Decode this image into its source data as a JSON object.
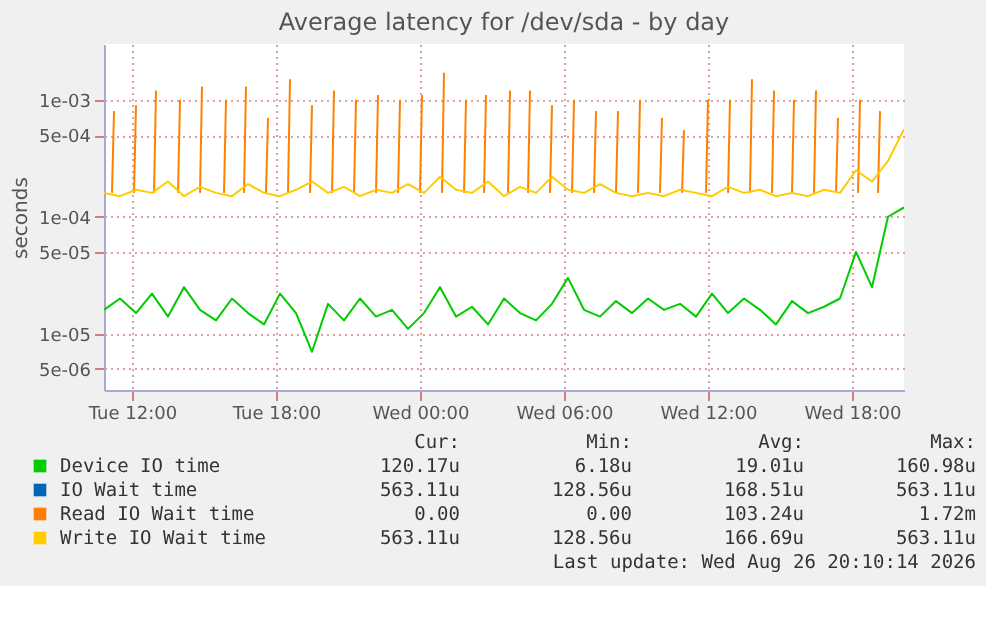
{
  "chart_data": {
    "type": "line",
    "title": "Average latency for /dev/sda - by day",
    "ylabel": "seconds",
    "log": "y",
    "grid": true,
    "legend": "bottom",
    "line_style": "solid",
    "xlim": [
      "2026-08-25T10:50",
      "2026-08-26T20:10"
    ],
    "xticks": [
      {
        "value": "2026-08-25T12:00",
        "label": "Tue 12:00"
      },
      {
        "value": "2026-08-25T18:00",
        "label": "Tue 18:00"
      },
      {
        "value": "2026-08-26T00:00",
        "label": "Wed 00:00"
      },
      {
        "value": "2026-08-26T06:00",
        "label": "Wed 06:00"
      },
      {
        "value": "2026-08-26T12:00",
        "label": "Wed 12:00"
      },
      {
        "value": "2026-08-26T18:00",
        "label": "Wed 18:00"
      }
    ],
    "ylim": [
      3.3e-06,
      0.003
    ],
    "yticks": [
      {
        "value": 5e-06,
        "label": "5e-06"
      },
      {
        "value": 1e-05,
        "label": "1e-05"
      },
      {
        "value": 5e-05,
        "label": "5e-05"
      },
      {
        "value": 0.0001,
        "label": "1e-04"
      },
      {
        "value": 0.0005,
        "label": "5e-04"
      },
      {
        "value": 0.001,
        "label": "1e-03"
      }
    ],
    "annotations": [
      "Cur:",
      "Min:",
      "Avg:",
      "Max:",
      "120.17u",
      "6.18u",
      "19.01u",
      "160.98u",
      "563.11u",
      "128.56u",
      "168.51u",
      "563.11u",
      "0.00",
      "0.00",
      "103.24u",
      "1.72m",
      "563.11u",
      "128.56u",
      "166.69u",
      "563.11u",
      "Last update: Wed Aug 26 20:10:14 2026"
    ],
    "series": [
      {
        "name": "Device IO time",
        "color": "#00cc00",
        "x": [
          "2026-08-25T10:50",
          "2026-08-25T11:30",
          "2026-08-25T12:10",
          "2026-08-25T12:50",
          "2026-08-25T13:30",
          "2026-08-25T14:10",
          "2026-08-25T14:50",
          "2026-08-25T15:30",
          "2026-08-25T16:10",
          "2026-08-25T16:50",
          "2026-08-25T17:30",
          "2026-08-25T18:10",
          "2026-08-25T18:50",
          "2026-08-25T19:30",
          "2026-08-25T20:10",
          "2026-08-25T20:50",
          "2026-08-25T21:30",
          "2026-08-25T22:10",
          "2026-08-25T22:50",
          "2026-08-25T23:30",
          "2026-08-26T00:10",
          "2026-08-26T00:50",
          "2026-08-26T01:30",
          "2026-08-26T02:10",
          "2026-08-26T02:50",
          "2026-08-26T03:30",
          "2026-08-26T04:10",
          "2026-08-26T04:50",
          "2026-08-26T05:30",
          "2026-08-26T06:10",
          "2026-08-26T06:50",
          "2026-08-26T07:30",
          "2026-08-26T08:10",
          "2026-08-26T08:50",
          "2026-08-26T09:30",
          "2026-08-26T10:10",
          "2026-08-26T10:50",
          "2026-08-26T11:30",
          "2026-08-26T12:10",
          "2026-08-26T12:50",
          "2026-08-26T13:30",
          "2026-08-26T14:10",
          "2026-08-26T14:50",
          "2026-08-26T15:30",
          "2026-08-26T16:10",
          "2026-08-26T16:50",
          "2026-08-26T17:30",
          "2026-08-26T18:10",
          "2026-08-26T18:50",
          "2026-08-26T19:30",
          "2026-08-26T20:10"
        ],
        "values": [
          1.6e-05,
          2e-05,
          1.5e-05,
          2.2e-05,
          1.4e-05,
          2.5e-05,
          1.6e-05,
          1.3e-05,
          2e-05,
          1.5e-05,
          1.2e-05,
          2.2e-05,
          1.5e-05,
          7e-06,
          1.8e-05,
          1.3e-05,
          2e-05,
          1.4e-05,
          1.6e-05,
          1.1e-05,
          1.5e-05,
          2.5e-05,
          1.4e-05,
          1.7e-05,
          1.2e-05,
          2e-05,
          1.5e-05,
          1.3e-05,
          1.8e-05,
          3e-05,
          1.6e-05,
          1.4e-05,
          1.9e-05,
          1.5e-05,
          2e-05,
          1.6e-05,
          1.8e-05,
          1.4e-05,
          2.2e-05,
          1.5e-05,
          2e-05,
          1.6e-05,
          1.2e-05,
          1.9e-05,
          1.5e-05,
          1.7e-05,
          2e-05,
          5e-05,
          2.5e-05,
          0.0001,
          0.00012
        ]
      },
      {
        "name": "IO Wait time",
        "color": "#0066b3"
      },
      {
        "name": "Read IO Wait time",
        "color": "#ff8000",
        "x": [
          "2026-08-25T11:10",
          "2026-08-25T11:15",
          "2026-08-25T11:20",
          "2026-08-25T12:05",
          "2026-08-25T12:10",
          "2026-08-25T12:15",
          "2026-08-25T12:55",
          "2026-08-25T13:00",
          "2026-08-25T13:05",
          "2026-08-25T13:55",
          "2026-08-25T14:00",
          "2026-08-25T14:05",
          "2026-08-25T14:50",
          "2026-08-25T14:55",
          "2026-08-25T15:00",
          "2026-08-25T15:50",
          "2026-08-25T15:55",
          "2026-08-25T16:00",
          "2026-08-25T16:40",
          "2026-08-25T16:45",
          "2026-08-25T16:50",
          "2026-08-25T17:35",
          "2026-08-25T17:40",
          "2026-08-25T17:45",
          "2026-08-25T18:30",
          "2026-08-25T18:35",
          "2026-08-25T18:40",
          "2026-08-25T19:25",
          "2026-08-25T19:30",
          "2026-08-25T19:35",
          "2026-08-25T20:20",
          "2026-08-25T20:25",
          "2026-08-25T20:30",
          "2026-08-25T21:15",
          "2026-08-25T21:20",
          "2026-08-25T21:25",
          "2026-08-25T22:10",
          "2026-08-25T22:15",
          "2026-08-25T22:20",
          "2026-08-25T23:05",
          "2026-08-25T23:10",
          "2026-08-25T23:15",
          "2026-08-26T00:00",
          "2026-08-26T00:05",
          "2026-08-26T00:10",
          "2026-08-26T00:55",
          "2026-08-26T01:00",
          "2026-08-26T01:05",
          "2026-08-26T01:50",
          "2026-08-26T01:55",
          "2026-08-26T02:00",
          "2026-08-26T02:40",
          "2026-08-26T02:45",
          "2026-08-26T02:50",
          "2026-08-26T03:40",
          "2026-08-26T03:45",
          "2026-08-26T03:50",
          "2026-08-26T04:30",
          "2026-08-26T04:35",
          "2026-08-26T04:40",
          "2026-08-26T05:25",
          "2026-08-26T05:30",
          "2026-08-26T05:35",
          "2026-08-26T06:20",
          "2026-08-26T06:25",
          "2026-08-26T06:30",
          "2026-08-26T07:15",
          "2026-08-26T07:20",
          "2026-08-26T07:25",
          "2026-08-26T08:10",
          "2026-08-26T08:15",
          "2026-08-26T08:20",
          "2026-08-26T09:05",
          "2026-08-26T09:10",
          "2026-08-26T09:15",
          "2026-08-26T10:00",
          "2026-08-26T10:05",
          "2026-08-26T10:10",
          "2026-08-26T10:55",
          "2026-08-26T11:00",
          "2026-08-26T11:05",
          "2026-08-26T11:55",
          "2026-08-26T12:00",
          "2026-08-26T12:05",
          "2026-08-26T12:50",
          "2026-08-26T12:55",
          "2026-08-26T13:00",
          "2026-08-26T13:45",
          "2026-08-26T13:50",
          "2026-08-26T13:55",
          "2026-08-26T14:40",
          "2026-08-26T14:45",
          "2026-08-26T14:50",
          "2026-08-26T15:30",
          "2026-08-26T15:35",
          "2026-08-26T15:40",
          "2026-08-26T16:25",
          "2026-08-26T16:30",
          "2026-08-26T16:35",
          "2026-08-26T17:20",
          "2026-08-26T17:25",
          "2026-08-26T17:30",
          "2026-08-26T18:15",
          "2026-08-26T18:20",
          "2026-08-26T18:25",
          "2026-08-26T19:05",
          "2026-08-26T19:10"
        ],
        "values": [
          0.00016,
          0.0008,
          null,
          0.00016,
          0.0009,
          null,
          0.00016,
          0.0012,
          null,
          0.00016,
          0.001,
          null,
          0.00016,
          0.0013,
          null,
          0.00016,
          0.001,
          null,
          0.00016,
          0.0013,
          null,
          0.00016,
          0.0007,
          null,
          0.00016,
          0.0015,
          null,
          0.00016,
          0.0009,
          null,
          0.00016,
          0.0012,
          null,
          0.00016,
          0.001,
          null,
          0.00016,
          0.0011,
          null,
          0.00016,
          0.001,
          null,
          0.00016,
          0.0011,
          null,
          0.00016,
          0.0017,
          null,
          0.00016,
          0.001,
          null,
          0.00016,
          0.0011,
          null,
          0.00016,
          0.0012,
          null,
          0.00016,
          0.0012,
          null,
          0.00016,
          0.0009,
          null,
          0.00016,
          0.001,
          null,
          0.00016,
          0.0008,
          null,
          0.00016,
          0.0008,
          null,
          0.00016,
          0.001,
          null,
          0.00016,
          0.0007,
          null,
          0.00016,
          0.00055,
          null,
          0.00016,
          0.001,
          null,
          0.00016,
          0.001,
          null,
          0.00016,
          0.0015,
          null,
          0.00016,
          0.0012,
          null,
          0.00016,
          0.001,
          null,
          0.00016,
          0.0012,
          null,
          0.00016,
          0.0007,
          null,
          0.00016,
          0.001,
          null,
          0.00016,
          0.0008
        ]
      },
      {
        "name": "Write IO Wait time",
        "color": "#ffcc00",
        "x": [
          "2026-08-25T10:50",
          "2026-08-25T11:30",
          "2026-08-25T12:10",
          "2026-08-25T12:50",
          "2026-08-25T13:30",
          "2026-08-25T14:10",
          "2026-08-25T14:50",
          "2026-08-25T15:30",
          "2026-08-25T16:10",
          "2026-08-25T16:50",
          "2026-08-25T17:30",
          "2026-08-25T18:10",
          "2026-08-25T18:50",
          "2026-08-25T19:30",
          "2026-08-25T20:10",
          "2026-08-25T20:50",
          "2026-08-25T21:30",
          "2026-08-25T22:10",
          "2026-08-25T22:50",
          "2026-08-25T23:30",
          "2026-08-26T00:10",
          "2026-08-26T00:50",
          "2026-08-26T01:30",
          "2026-08-26T02:10",
          "2026-08-26T02:50",
          "2026-08-26T03:30",
          "2026-08-26T04:10",
          "2026-08-26T04:50",
          "2026-08-26T05:30",
          "2026-08-26T06:10",
          "2026-08-26T06:50",
          "2026-08-26T07:30",
          "2026-08-26T08:10",
          "2026-08-26T08:50",
          "2026-08-26T09:30",
          "2026-08-26T10:10",
          "2026-08-26T10:50",
          "2026-08-26T11:30",
          "2026-08-26T12:10",
          "2026-08-26T12:50",
          "2026-08-26T13:30",
          "2026-08-26T14:10",
          "2026-08-26T14:50",
          "2026-08-26T15:30",
          "2026-08-26T16:10",
          "2026-08-26T16:50",
          "2026-08-26T17:30",
          "2026-08-26T18:10",
          "2026-08-26T18:50",
          "2026-08-26T19:30",
          "2026-08-26T20:10"
        ],
        "values": [
          0.00016,
          0.00015,
          0.00017,
          0.00016,
          0.0002,
          0.00015,
          0.00018,
          0.00016,
          0.00015,
          0.00019,
          0.00016,
          0.00015,
          0.00017,
          0.0002,
          0.00016,
          0.00018,
          0.00015,
          0.00017,
          0.00016,
          0.00019,
          0.00016,
          0.00022,
          0.00017,
          0.00016,
          0.0002,
          0.00015,
          0.00018,
          0.00016,
          0.00022,
          0.00017,
          0.00016,
          0.00019,
          0.00016,
          0.00015,
          0.00016,
          0.00015,
          0.00017,
          0.00016,
          0.00015,
          0.00018,
          0.00016,
          0.00017,
          0.00015,
          0.00016,
          0.00015,
          0.00017,
          0.00016,
          0.00025,
          0.0002,
          0.0003,
          0.00056
        ]
      }
    ]
  }
}
